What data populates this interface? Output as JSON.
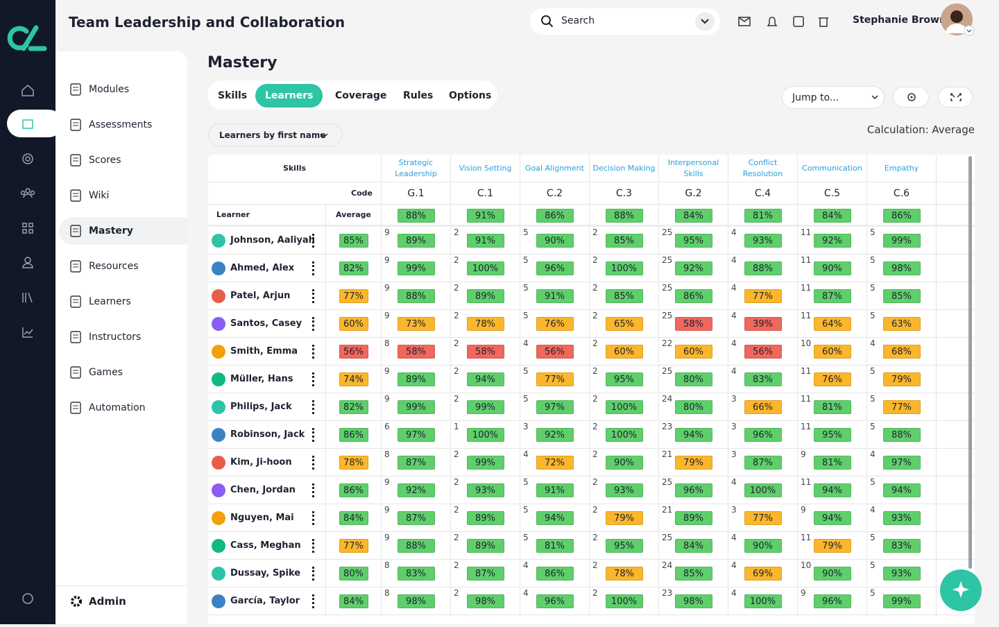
{
  "header": {
    "title": "Team Leadership and Collaboration",
    "search_placeholder": "Search",
    "user_name": "Stephanie Brown"
  },
  "nav": {
    "items": [
      "Modules",
      "Assessments",
      "Scores",
      "Wiki",
      "Mastery",
      "Resources",
      "Learners",
      "Instructors",
      "Games",
      "Automation"
    ],
    "active": 4,
    "footer": "Admin"
  },
  "page": {
    "title": "Mastery",
    "tabs": [
      "Skills",
      "Learners",
      "Coverage",
      "Rules",
      "Options"
    ],
    "active_tab": 1,
    "jump_to": "Jump to...",
    "sort": "Learners by first name",
    "calculation": "Calculation: Average"
  },
  "table": {
    "skills_label": "Skills",
    "code_label": "Code",
    "learner_label": "Learner",
    "average_label": "Average",
    "skills": [
      {
        "name": "Strategic Leadership",
        "code": "G.1",
        "average": "88%"
      },
      {
        "name": "Vision Setting",
        "code": "C.1",
        "average": "91%"
      },
      {
        "name": "Goal Alignment",
        "code": "C.2",
        "average": "86%"
      },
      {
        "name": "Decision Making",
        "code": "C.3",
        "average": "88%"
      },
      {
        "name": "Interpersonal Skills",
        "code": "G.2",
        "average": "84%"
      },
      {
        "name": "Conflict Resolution",
        "code": "C.4",
        "average": "81%"
      },
      {
        "name": "Communication",
        "code": "C.5",
        "average": "84%"
      },
      {
        "name": "Empathy",
        "code": "C.6",
        "average": "86%"
      }
    ],
    "rows": [
      {
        "name": "Johnson, Aaliyah",
        "average": "85%",
        "cells": [
          {
            "count": "9",
            "score": "89%"
          },
          {
            "count": "2",
            "score": "91%"
          },
          {
            "count": "5",
            "score": "90%"
          },
          {
            "count": "2",
            "score": "85%"
          },
          {
            "count": "25",
            "score": "95%"
          },
          {
            "count": "4",
            "score": "93%"
          },
          {
            "count": "11",
            "score": "92%"
          },
          {
            "count": "5",
            "score": "99%"
          }
        ]
      },
      {
        "name": "Ahmed, Alex",
        "average": "82%",
        "cells": [
          {
            "count": "9",
            "score": "99%"
          },
          {
            "count": "2",
            "score": "100%"
          },
          {
            "count": "5",
            "score": "96%"
          },
          {
            "count": "2",
            "score": "100%"
          },
          {
            "count": "25",
            "score": "92%"
          },
          {
            "count": "4",
            "score": "88%"
          },
          {
            "count": "11",
            "score": "90%"
          },
          {
            "count": "5",
            "score": "98%"
          }
        ]
      },
      {
        "name": "Patel, Arjun",
        "average": "77%",
        "cells": [
          {
            "count": "9",
            "score": "88%"
          },
          {
            "count": "2",
            "score": "89%"
          },
          {
            "count": "5",
            "score": "91%"
          },
          {
            "count": "2",
            "score": "85%"
          },
          {
            "count": "25",
            "score": "86%"
          },
          {
            "count": "4",
            "score": "77%"
          },
          {
            "count": "11",
            "score": "87%"
          },
          {
            "count": "5",
            "score": "85%"
          }
        ]
      },
      {
        "name": "Santos, Casey",
        "average": "60%",
        "cells": [
          {
            "count": "9",
            "score": "73%"
          },
          {
            "count": "2",
            "score": "78%"
          },
          {
            "count": "5",
            "score": "76%"
          },
          {
            "count": "2",
            "score": "65%"
          },
          {
            "count": "25",
            "score": "58%"
          },
          {
            "count": "4",
            "score": "39%"
          },
          {
            "count": "11",
            "score": "64%"
          },
          {
            "count": "5",
            "score": "63%"
          }
        ]
      },
      {
        "name": "Smith, Emma",
        "average": "56%",
        "cells": [
          {
            "count": "8",
            "score": "58%"
          },
          {
            "count": "2",
            "score": "58%"
          },
          {
            "count": "4",
            "score": "56%"
          },
          {
            "count": "2",
            "score": "60%"
          },
          {
            "count": "22",
            "score": "60%"
          },
          {
            "count": "4",
            "score": "56%"
          },
          {
            "count": "10",
            "score": "60%"
          },
          {
            "count": "4",
            "score": "68%"
          }
        ]
      },
      {
        "name": "Müller, Hans",
        "average": "74%",
        "cells": [
          {
            "count": "9",
            "score": "89%"
          },
          {
            "count": "2",
            "score": "94%"
          },
          {
            "count": "5",
            "score": "77%"
          },
          {
            "count": "2",
            "score": "95%"
          },
          {
            "count": "25",
            "score": "80%"
          },
          {
            "count": "4",
            "score": "83%"
          },
          {
            "count": "11",
            "score": "76%"
          },
          {
            "count": "5",
            "score": "79%"
          }
        ]
      },
      {
        "name": "Philips, Jack",
        "average": "82%",
        "cells": [
          {
            "count": "9",
            "score": "99%"
          },
          {
            "count": "2",
            "score": "99%"
          },
          {
            "count": "5",
            "score": "97%"
          },
          {
            "count": "2",
            "score": "100%"
          },
          {
            "count": "24",
            "score": "80%"
          },
          {
            "count": "3",
            "score": "66%"
          },
          {
            "count": "11",
            "score": "81%"
          },
          {
            "count": "5",
            "score": "77%"
          }
        ]
      },
      {
        "name": "Robinson, Jack",
        "average": "86%",
        "cells": [
          {
            "count": "6",
            "score": "97%"
          },
          {
            "count": "1",
            "score": "100%"
          },
          {
            "count": "3",
            "score": "92%"
          },
          {
            "count": "2",
            "score": "100%"
          },
          {
            "count": "23",
            "score": "94%"
          },
          {
            "count": "3",
            "score": "96%"
          },
          {
            "count": "11",
            "score": "95%"
          },
          {
            "count": "5",
            "score": "88%"
          }
        ]
      },
      {
        "name": "Kim, Ji-hoon",
        "average": "78%",
        "cells": [
          {
            "count": "8",
            "score": "87%"
          },
          {
            "count": "2",
            "score": "99%"
          },
          {
            "count": "4",
            "score": "72%"
          },
          {
            "count": "2",
            "score": "90%"
          },
          {
            "count": "21",
            "score": "79%"
          },
          {
            "count": "3",
            "score": "87%"
          },
          {
            "count": "9",
            "score": "81%"
          },
          {
            "count": "4",
            "score": "97%"
          }
        ]
      },
      {
        "name": "Chen, Jordan",
        "average": "86%",
        "cells": [
          {
            "count": "9",
            "score": "92%"
          },
          {
            "count": "2",
            "score": "93%"
          },
          {
            "count": "5",
            "score": "91%"
          },
          {
            "count": "2",
            "score": "93%"
          },
          {
            "count": "25",
            "score": "96%"
          },
          {
            "count": "4",
            "score": "100%"
          },
          {
            "count": "11",
            "score": "94%"
          },
          {
            "count": "5",
            "score": "94%"
          }
        ]
      },
      {
        "name": "Nguyen, Mai",
        "average": "84%",
        "cells": [
          {
            "count": "9",
            "score": "87%"
          },
          {
            "count": "2",
            "score": "89%"
          },
          {
            "count": "5",
            "score": "94%"
          },
          {
            "count": "2",
            "score": "79%"
          },
          {
            "count": "21",
            "score": "89%"
          },
          {
            "count": "3",
            "score": "77%"
          },
          {
            "count": "9",
            "score": "94%"
          },
          {
            "count": "4",
            "score": "93%"
          }
        ]
      },
      {
        "name": "Cass, Meghan",
        "average": "77%",
        "cells": [
          {
            "count": "9",
            "score": "88%"
          },
          {
            "count": "2",
            "score": "89%"
          },
          {
            "count": "5",
            "score": "81%"
          },
          {
            "count": "2",
            "score": "95%"
          },
          {
            "count": "25",
            "score": "84%"
          },
          {
            "count": "4",
            "score": "90%"
          },
          {
            "count": "11",
            "score": "79%"
          },
          {
            "count": "5",
            "score": "83%"
          }
        ]
      },
      {
        "name": "Dussay, Spike",
        "average": "80%",
        "cells": [
          {
            "count": "8",
            "score": "83%"
          },
          {
            "count": "2",
            "score": "87%"
          },
          {
            "count": "4",
            "score": "86%"
          },
          {
            "count": "2",
            "score": "78%"
          },
          {
            "count": "24",
            "score": "85%"
          },
          {
            "count": "4",
            "score": "69%"
          },
          {
            "count": "10",
            "score": "90%"
          },
          {
            "count": "5",
            "score": "93%"
          }
        ]
      },
      {
        "name": "García, Taylor",
        "average": "84%",
        "cells": [
          {
            "count": "8",
            "score": "98%"
          },
          {
            "count": "2",
            "score": "98%"
          },
          {
            "count": "4",
            "score": "96%"
          },
          {
            "count": "2",
            "score": "100%"
          },
          {
            "count": "23",
            "score": "98%"
          },
          {
            "count": "4",
            "score": "100%"
          },
          {
            "count": "9",
            "score": "96%"
          },
          {
            "count": "5",
            "score": "99%"
          }
        ]
      }
    ]
  }
}
